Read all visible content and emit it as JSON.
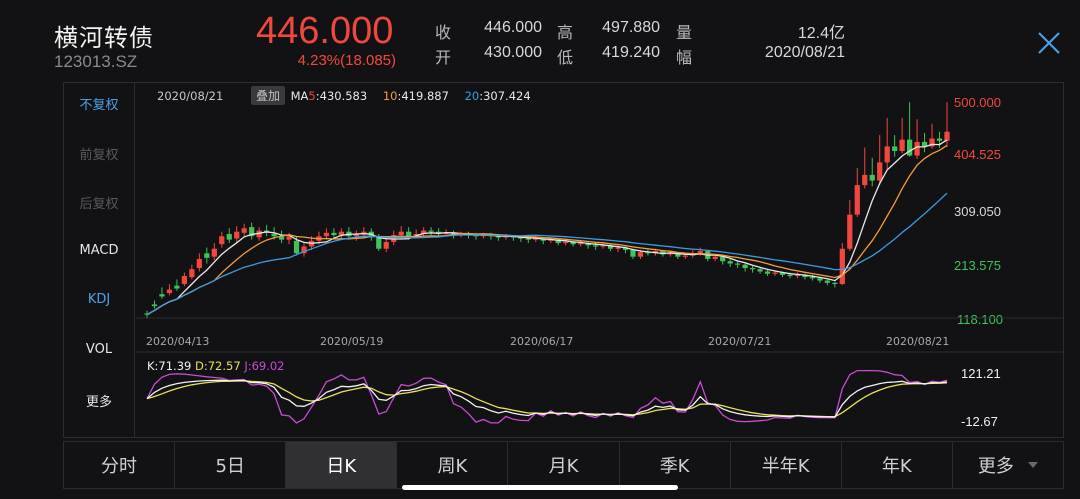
{
  "header": {
    "name": "横河转债",
    "code": "123013.SZ",
    "price": "446.000",
    "change": "4.23%(18.085)",
    "stats": [
      {
        "label": "收",
        "value": "446.000"
      },
      {
        "label": "高",
        "value": "497.880"
      },
      {
        "label": "量",
        "value": "12.4亿"
      },
      {
        "label": "开",
        "value": "430.000"
      },
      {
        "label": "低",
        "value": "419.240"
      },
      {
        "label": "幅",
        "value": "2020/08/21"
      }
    ],
    "close_icon": "close-icon"
  },
  "side_menu": [
    "不复权",
    "前复权",
    "后复权",
    "MACD",
    "KDJ",
    "VOL",
    "更多"
  ],
  "legend": {
    "date": "2020/08/21",
    "overlay": "叠加",
    "ma_label": "MA",
    "ma5_key": "5",
    "ma5_value": ":430.583",
    "ma10_key": "10",
    "ma10_value": ":419.887",
    "ma20_key": "20",
    "ma20_value": ":307.424"
  },
  "y_axis": [
    "500.000",
    "404.525",
    "309.050",
    "213.575",
    "118.100"
  ],
  "x_axis": [
    "2020/04/13",
    "2020/05/19",
    "2020/06/17",
    "2020/07/21",
    "2020/08/21"
  ],
  "kdj": {
    "k": "K:71.39",
    "d": "D:72.57",
    "j": "J:69.02",
    "upper": "121.21",
    "lower": "-12.67"
  },
  "tabs": [
    "分时",
    "5日",
    "日K",
    "周K",
    "月K",
    "季K",
    "半年K",
    "年K",
    "更多"
  ],
  "active_tab": "日K",
  "colors": {
    "up": "#f0483e",
    "down": "#3fc35a",
    "ma5": "#e8e8ea",
    "ma10": "#f39c3c",
    "ma20": "#3d9be0",
    "k": "#f2f2f2",
    "d": "#e8e15a",
    "j": "#c94bd6",
    "accent": "#4aa3e8"
  },
  "chart_data": {
    "type": "candlestick",
    "y_range": [
      118.1,
      500.0
    ],
    "x_labels": [
      "2020/04/13",
      "2020/05/19",
      "2020/06/17",
      "2020/07/21",
      "2020/08/21"
    ],
    "candles_ohlc": [
      [
        126,
        124,
        131,
        119
      ],
      [
        142,
        139,
        149,
        135
      ],
      [
        160,
        156,
        172,
        152
      ],
      [
        162,
        168,
        178,
        158
      ],
      [
        175,
        170,
        186,
        166
      ],
      [
        178,
        192,
        198,
        174
      ],
      [
        190,
        204,
        212,
        186
      ],
      [
        206,
        222,
        232,
        200
      ],
      [
        232,
        224,
        242,
        214
      ],
      [
        226,
        240,
        250,
        220
      ],
      [
        248,
        262,
        270,
        242
      ],
      [
        266,
        256,
        276,
        250
      ],
      [
        258,
        270,
        280,
        252
      ],
      [
        268,
        276,
        284,
        262
      ],
      [
        278,
        262,
        286,
        256
      ],
      [
        260,
        272,
        278,
        254
      ],
      [
        272,
        268,
        282,
        262
      ],
      [
        266,
        262,
        278,
        256
      ],
      [
        262,
        256,
        272,
        250
      ],
      [
        256,
        262,
        268,
        248
      ],
      [
        254,
        232,
        262,
        228
      ],
      [
        232,
        244,
        250,
        226
      ],
      [
        244,
        254,
        262,
        238
      ],
      [
        254,
        262,
        270,
        248
      ],
      [
        262,
        268,
        276,
        256
      ],
      [
        268,
        264,
        276,
        258
      ],
      [
        264,
        270,
        276,
        258
      ],
      [
        270,
        262,
        278,
        256
      ],
      [
        262,
        266,
        272,
        254
      ],
      [
        266,
        270,
        278,
        260
      ],
      [
        270,
        260,
        276,
        254
      ],
      [
        260,
        240,
        266,
        236
      ],
      [
        240,
        252,
        258,
        234
      ],
      [
        252,
        264,
        272,
        246
      ],
      [
        264,
        270,
        280,
        258
      ],
      [
        270,
        262,
        278,
        256
      ],
      [
        262,
        266,
        274,
        258
      ],
      [
        266,
        272,
        278,
        262
      ],
      [
        272,
        270,
        278,
        264
      ],
      [
        270,
        266,
        276,
        260
      ],
      [
        266,
        268,
        274,
        262
      ],
      [
        268,
        264,
        272,
        258
      ],
      [
        264,
        266,
        270,
        260
      ],
      [
        266,
        264,
        270,
        258
      ],
      [
        264,
        262,
        268,
        256
      ],
      [
        262,
        264,
        268,
        258
      ],
      [
        264,
        262,
        268,
        256
      ],
      [
        262,
        260,
        266,
        254
      ],
      [
        260,
        262,
        266,
        256
      ],
      [
        262,
        260,
        264,
        254
      ],
      [
        260,
        258,
        264,
        252
      ],
      [
        258,
        256,
        262,
        250
      ],
      [
        256,
        258,
        262,
        252
      ],
      [
        258,
        254,
        260,
        248
      ],
      [
        254,
        256,
        260,
        250
      ],
      [
        256,
        250,
        258,
        246
      ],
      [
        250,
        252,
        256,
        246
      ],
      [
        252,
        248,
        254,
        244
      ],
      [
        248,
        250,
        254,
        244
      ],
      [
        250,
        246,
        252,
        240
      ],
      [
        246,
        244,
        250,
        238
      ],
      [
        244,
        246,
        250,
        240
      ],
      [
        246,
        240,
        248,
        236
      ],
      [
        240,
        242,
        246,
        234
      ],
      [
        242,
        238,
        244,
        232
      ],
      [
        238,
        226,
        240,
        222
      ],
      [
        226,
        234,
        238,
        222
      ],
      [
        234,
        232,
        238,
        228
      ],
      [
        232,
        236,
        240,
        228
      ],
      [
        236,
        230,
        238,
        226
      ],
      [
        230,
        232,
        236,
        226
      ],
      [
        232,
        226,
        234,
        222
      ],
      [
        226,
        228,
        232,
        222
      ],
      [
        228,
        232,
        238,
        224
      ],
      [
        232,
        236,
        242,
        228
      ],
      [
        236,
        222,
        238,
        218
      ],
      [
        222,
        226,
        230,
        218
      ],
      [
        226,
        218,
        228,
        212
      ],
      [
        218,
        214,
        222,
        208
      ],
      [
        214,
        212,
        218,
        206
      ],
      [
        212,
        206,
        214,
        200
      ],
      [
        206,
        204,
        210,
        198
      ],
      [
        204,
        200,
        206,
        196
      ],
      [
        200,
        196,
        204,
        192
      ],
      [
        196,
        198,
        202,
        192
      ],
      [
        198,
        194,
        200,
        190
      ],
      [
        194,
        192,
        198,
        188
      ],
      [
        192,
        194,
        198,
        188
      ],
      [
        194,
        190,
        196,
        186
      ],
      [
        190,
        188,
        194,
        184
      ],
      [
        188,
        184,
        190,
        180
      ],
      [
        184,
        180,
        186,
        176
      ],
      [
        180,
        178,
        182,
        172
      ],
      [
        178,
        240,
        250,
        176
      ],
      [
        240,
        300,
        326,
        236
      ],
      [
        300,
        352,
        382,
        296
      ],
      [
        352,
        370,
        418,
        346
      ],
      [
        370,
        360,
        400,
        350
      ],
      [
        360,
        392,
        440,
        352
      ],
      [
        392,
        420,
        470,
        380
      ],
      [
        420,
        412,
        440,
        402
      ],
      [
        412,
        432,
        470,
        408
      ],
      [
        432,
        404,
        498,
        402
      ],
      [
        404,
        428,
        468,
        398
      ],
      [
        428,
        420,
        444,
        410
      ],
      [
        420,
        434,
        460,
        416
      ],
      [
        434,
        430,
        446,
        418
      ],
      [
        430,
        446,
        498,
        419
      ]
    ]
  }
}
